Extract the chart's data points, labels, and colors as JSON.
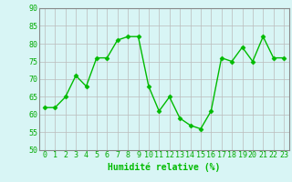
{
  "x": [
    0,
    1,
    2,
    3,
    4,
    5,
    6,
    7,
    8,
    9,
    10,
    11,
    12,
    13,
    14,
    15,
    16,
    17,
    18,
    19,
    20,
    21,
    22,
    23
  ],
  "y": [
    62,
    62,
    65,
    71,
    68,
    76,
    76,
    81,
    82,
    82,
    68,
    61,
    65,
    59,
    57,
    56,
    61,
    76,
    75,
    79,
    75,
    82,
    76,
    76
  ],
  "xlabel": "Humidité relative (%)",
  "ylim": [
    50,
    90
  ],
  "yticks": [
    50,
    55,
    60,
    65,
    70,
    75,
    80,
    85,
    90
  ],
  "xticks": [
    0,
    1,
    2,
    3,
    4,
    5,
    6,
    7,
    8,
    9,
    10,
    11,
    12,
    13,
    14,
    15,
    16,
    17,
    18,
    19,
    20,
    21,
    22,
    23
  ],
  "line_color": "#00bb00",
  "marker": "D",
  "marker_size": 2.5,
  "background_color": "#d8f5f5",
  "grid_color": "#bbbbbb",
  "xlabel_fontsize": 7,
  "tick_fontsize": 6
}
